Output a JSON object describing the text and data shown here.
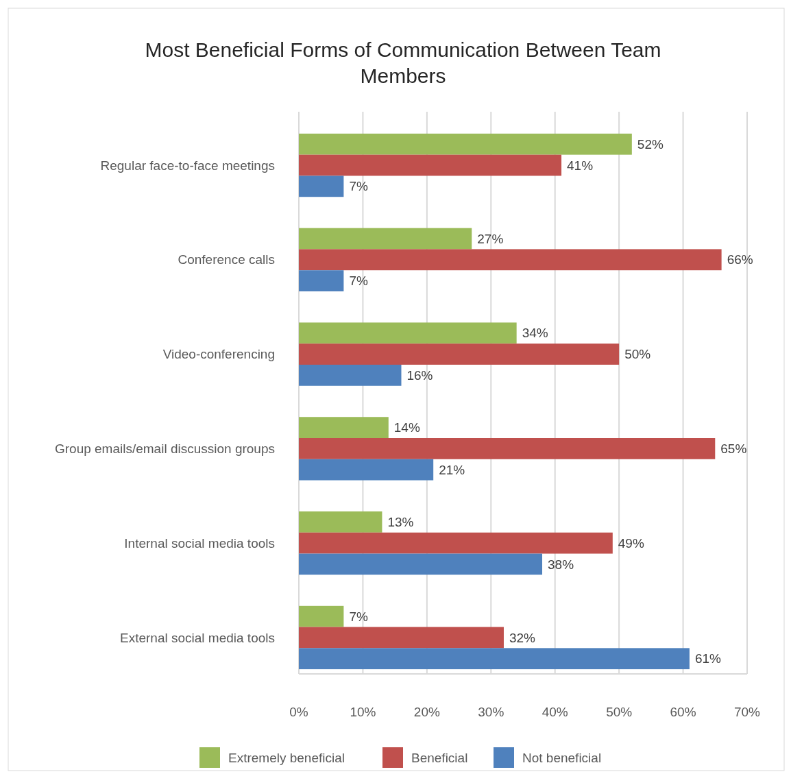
{
  "chart_data": {
    "type": "bar",
    "orientation": "horizontal",
    "title": "Most Beneficial Forms of Communication Between Team Members",
    "categories": [
      "Regular face-to-face meetings",
      "Conference calls",
      "Video-conferencing",
      "Group emails/email discussion groups",
      "Internal social media tools",
      "External social media tools"
    ],
    "series": [
      {
        "name": "Extremely beneficial",
        "color": "#9bbb59",
        "values": [
          52,
          27,
          34,
          14,
          13,
          7
        ],
        "value_labels": [
          "52%",
          "27%",
          "34%",
          "14%",
          "13%",
          "7%"
        ]
      },
      {
        "name": "Beneficial",
        "color": "#c0504d",
        "values": [
          41,
          66,
          50,
          65,
          49,
          32
        ],
        "value_labels": [
          "41%",
          "66%",
          "50%",
          "65%",
          "49%",
          "32%"
        ]
      },
      {
        "name": "Not beneficial",
        "color": "#4f81bd",
        "values": [
          7,
          7,
          16,
          21,
          38,
          61
        ],
        "value_labels": [
          "7%",
          "7%",
          "16%",
          "21%",
          "38%",
          "61%"
        ]
      }
    ],
    "xlim": [
      0,
      70
    ],
    "xticks": [
      {
        "value": 0,
        "label": "0%"
      },
      {
        "value": 10,
        "label": "10%"
      },
      {
        "value": 20,
        "label": "20%"
      },
      {
        "value": 30,
        "label": "30%"
      },
      {
        "value": 40,
        "label": "40%"
      },
      {
        "value": 50,
        "label": "50%"
      },
      {
        "value": 60,
        "label": "60%"
      },
      {
        "value": 70,
        "label": "70%"
      }
    ],
    "grid": "x",
    "legend": "bottom"
  }
}
